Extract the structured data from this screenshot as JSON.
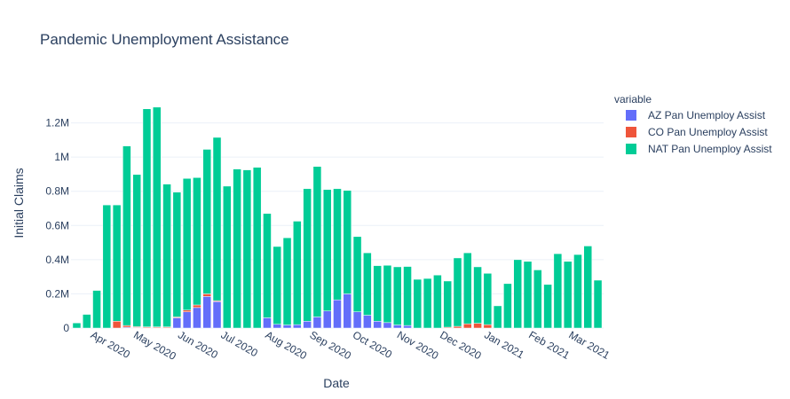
{
  "chart_data": {
    "type": "bar",
    "barmode": "stack",
    "title": "Pandemic Unemployment Assistance",
    "xlabel": "Date",
    "ylabel": "Initial Claims",
    "ylim": [
      0,
      1400000
    ],
    "grid": true,
    "legend": {
      "title": "variable",
      "placement": "top-right"
    },
    "x_ticks": [
      "Apr 2020",
      "May 2020",
      "Jun 2020",
      "Jul 2020",
      "Aug 2020",
      "Sep 2020",
      "Oct 2020",
      "Nov 2020",
      "Dec 2020",
      "Jan 2021",
      "Feb 2021",
      "Mar 2021"
    ],
    "y_ticks": [
      {
        "value": 0,
        "label": "0"
      },
      {
        "value": 200000,
        "label": "0.2M"
      },
      {
        "value": 400000,
        "label": "0.4M"
      },
      {
        "value": 600000,
        "label": "0.6M"
      },
      {
        "value": 800000,
        "label": "0.8M"
      },
      {
        "value": 1000000,
        "label": "1M"
      },
      {
        "value": 1200000,
        "label": "1.2M"
      }
    ],
    "x": [
      "2020-03-21",
      "2020-03-28",
      "2020-04-04",
      "2020-04-11",
      "2020-04-18",
      "2020-04-25",
      "2020-05-02",
      "2020-05-09",
      "2020-05-16",
      "2020-05-23",
      "2020-05-30",
      "2020-06-06",
      "2020-06-13",
      "2020-06-20",
      "2020-06-27",
      "2020-07-04",
      "2020-07-11",
      "2020-07-18",
      "2020-07-25",
      "2020-08-01",
      "2020-08-08",
      "2020-08-15",
      "2020-08-22",
      "2020-08-29",
      "2020-09-05",
      "2020-09-12",
      "2020-09-19",
      "2020-09-26",
      "2020-10-03",
      "2020-10-10",
      "2020-10-17",
      "2020-10-24",
      "2020-10-31",
      "2020-11-07",
      "2020-11-14",
      "2020-11-21",
      "2020-11-28",
      "2020-12-05",
      "2020-12-12",
      "2020-12-19",
      "2020-12-26",
      "2021-01-02",
      "2021-01-09",
      "2021-01-16",
      "2021-01-23",
      "2021-01-30",
      "2021-02-06",
      "2021-02-13",
      "2021-02-20",
      "2021-02-27",
      "2021-03-06",
      "2021-03-13",
      "2021-03-20"
    ],
    "series": [
      {
        "name": "AZ Pan Unemploy Assist",
        "color": "#636efa",
        "values": [
          0,
          0,
          0,
          0,
          0,
          5000,
          3000,
          2000,
          2000,
          2000,
          60000,
          95000,
          120000,
          185000,
          155000,
          0,
          0,
          0,
          0,
          60000,
          22000,
          18000,
          20000,
          40000,
          65000,
          100000,
          165000,
          200000,
          95000,
          75000,
          40000,
          32000,
          18000,
          15000,
          0,
          0,
          0,
          0,
          0,
          0,
          0,
          0,
          0,
          0,
          0,
          0,
          0,
          0,
          0,
          0,
          0,
          0,
          0
        ]
      },
      {
        "name": "CO Pan Unemploy Assist",
        "color": "#ef553b",
        "values": [
          0,
          0,
          0,
          0,
          40000,
          10000,
          5000,
          5000,
          5000,
          5000,
          5000,
          10000,
          15000,
          15000,
          5000,
          0,
          0,
          0,
          0,
          0,
          0,
          0,
          0,
          0,
          0,
          0,
          0,
          0,
          0,
          0,
          0,
          0,
          0,
          0,
          0,
          0,
          0,
          5000,
          10000,
          25000,
          28000,
          20000,
          0,
          0,
          0,
          0,
          0,
          0,
          0,
          0,
          0,
          0,
          0
        ]
      },
      {
        "name": "NAT Pan Unemploy Assist",
        "color": "#00cc96",
        "values": [
          30000,
          80000,
          220000,
          720000,
          680000,
          1050000,
          890000,
          1275000,
          1285000,
          835000,
          730000,
          770000,
          745000,
          845000,
          955000,
          830000,
          930000,
          925000,
          940000,
          610000,
          455000,
          510000,
          605000,
          775000,
          880000,
          710000,
          650000,
          605000,
          440000,
          365000,
          325000,
          335000,
          340000,
          345000,
          285000,
          290000,
          310000,
          270000,
          400000,
          415000,
          330000,
          300000,
          130000,
          260000,
          400000,
          390000,
          340000,
          255000,
          435000,
          390000,
          430000,
          480000,
          280000
        ]
      }
    ]
  }
}
